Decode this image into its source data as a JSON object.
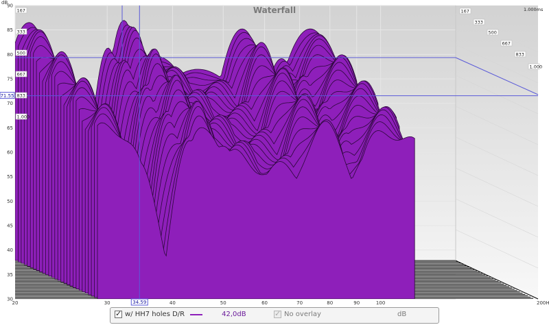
{
  "chart_data": {
    "type": "waterfall",
    "title": "Waterfall",
    "ylabel": "dB",
    "xlabel_end": "200Hz",
    "ylim": [
      30,
      90
    ],
    "xlim": [
      20,
      200
    ],
    "x_scale": "log",
    "y_ticks": [
      90,
      85,
      80,
      75,
      70,
      65,
      60,
      55,
      50,
      45,
      40,
      35,
      30
    ],
    "x_ticks": [
      {
        "v": 20,
        "label": "20"
      },
      {
        "v": 30,
        "label": "30"
      },
      {
        "v": 40,
        "label": "40"
      },
      {
        "v": 50,
        "label": "50"
      },
      {
        "v": 60,
        "label": "60"
      },
      {
        "v": 70,
        "label": "70"
      },
      {
        "v": 80,
        "label": "80"
      },
      {
        "v": 90,
        "label": "90"
      },
      {
        "v": 100,
        "label": "100"
      }
    ],
    "time_left_labels": [
      "167",
      "333",
      "500",
      "667",
      "833",
      "1.000"
    ],
    "time_right_labels": [
      "167",
      "333",
      "500",
      "667",
      "833",
      "1.000"
    ],
    "time_right_top": "1.000ms",
    "cursor": {
      "x": 34.59,
      "x_label": "34.59",
      "y": 71.55,
      "y_label": "71.55"
    },
    "slices": 28,
    "series_color": "#8e1fba",
    "peaks": [
      {
        "f": 21.5,
        "level": 86,
        "width": 0.035
      },
      {
        "f": 24.3,
        "level": 75.5,
        "width": 0.028
      },
      {
        "f": 32.5,
        "level": 80,
        "width": 0.02
      },
      {
        "f": 35.3,
        "level": 86.5,
        "width": 0.022
      },
      {
        "f": 36.8,
        "level": 82,
        "width": 0.03
      },
      {
        "f": 42,
        "level": 78,
        "width": 0.06
      },
      {
        "f": 52,
        "level": 75,
        "width": 0.09
      },
      {
        "f": 65.5,
        "level": 84.5,
        "width": 0.035
      },
      {
        "f": 80.5,
        "level": 77.5,
        "width": 0.03
      },
      {
        "f": 93.5,
        "level": 84.5,
        "width": 0.045
      },
      {
        "f": 112,
        "level": 80,
        "width": 0.05
      }
    ]
  },
  "legend": {
    "series_label": "w/ HH7 holes D/R",
    "series_value": "42,0dB",
    "overlay_label": "No overlay",
    "unit": "dB",
    "series_checked": true,
    "overlay_checked": true
  }
}
